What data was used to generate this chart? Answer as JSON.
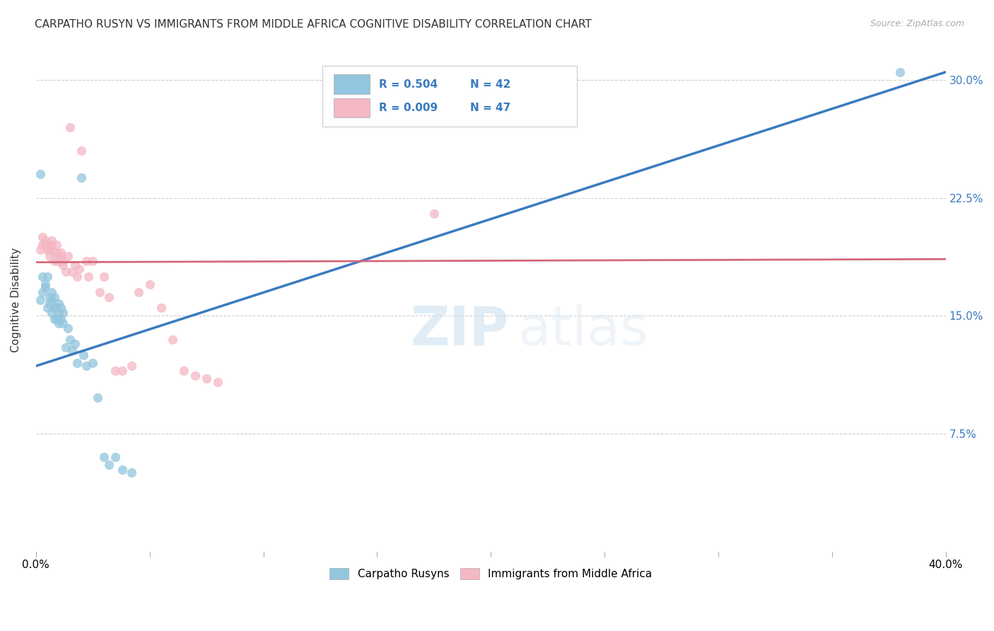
{
  "title": "CARPATHO RUSYN VS IMMIGRANTS FROM MIDDLE AFRICA COGNITIVE DISABILITY CORRELATION CHART",
  "source": "Source: ZipAtlas.com",
  "ylabel": "Cognitive Disability",
  "ytick_labels": [
    "7.5%",
    "15.0%",
    "22.5%",
    "30.0%"
  ],
  "ytick_values": [
    0.075,
    0.15,
    0.225,
    0.3
  ],
  "xlim": [
    0.0,
    0.4
  ],
  "ylim": [
    0.0,
    0.32
  ],
  "legend_label_1": "Carpatho Rusyns",
  "legend_label_2": "Immigrants from Middle Africa",
  "r1": 0.504,
  "n1": 42,
  "r2": 0.009,
  "n2": 47,
  "blue_color": "#92c5de",
  "pink_color": "#f4b8c4",
  "blue_line_color": "#3a7abf",
  "pink_line_color": "#d4687a",
  "watermark_zip": "ZIP",
  "watermark_atlas": "atlas",
  "blue_scatter_x": [
    0.002,
    0.003,
    0.003,
    0.004,
    0.004,
    0.005,
    0.005,
    0.006,
    0.006,
    0.007,
    0.007,
    0.007,
    0.008,
    0.008,
    0.008,
    0.009,
    0.009,
    0.01,
    0.01,
    0.01,
    0.011,
    0.011,
    0.012,
    0.012,
    0.013,
    0.014,
    0.015,
    0.016,
    0.017,
    0.018,
    0.02,
    0.021,
    0.022,
    0.025,
    0.027,
    0.03,
    0.032,
    0.035,
    0.038,
    0.042,
    0.002,
    0.38
  ],
  "blue_scatter_y": [
    0.16,
    0.165,
    0.175,
    0.168,
    0.17,
    0.175,
    0.155,
    0.162,
    0.158,
    0.16,
    0.152,
    0.165,
    0.148,
    0.155,
    0.162,
    0.148,
    0.155,
    0.145,
    0.15,
    0.158,
    0.148,
    0.155,
    0.145,
    0.152,
    0.13,
    0.142,
    0.135,
    0.128,
    0.132,
    0.12,
    0.238,
    0.125,
    0.118,
    0.12,
    0.098,
    0.06,
    0.055,
    0.06,
    0.052,
    0.05,
    0.24,
    0.305
  ],
  "pink_scatter_x": [
    0.002,
    0.003,
    0.003,
    0.004,
    0.004,
    0.005,
    0.005,
    0.006,
    0.006,
    0.007,
    0.007,
    0.008,
    0.008,
    0.009,
    0.009,
    0.01,
    0.01,
    0.011,
    0.011,
    0.012,
    0.012,
    0.013,
    0.014,
    0.015,
    0.016,
    0.017,
    0.018,
    0.019,
    0.02,
    0.022,
    0.023,
    0.025,
    0.028,
    0.03,
    0.032,
    0.035,
    0.038,
    0.042,
    0.045,
    0.05,
    0.055,
    0.06,
    0.065,
    0.07,
    0.075,
    0.08,
    0.175
  ],
  "pink_scatter_y": [
    0.192,
    0.195,
    0.2,
    0.195,
    0.198,
    0.195,
    0.192,
    0.188,
    0.192,
    0.195,
    0.198,
    0.185,
    0.19,
    0.19,
    0.195,
    0.188,
    0.185,
    0.188,
    0.19,
    0.182,
    0.185,
    0.178,
    0.188,
    0.27,
    0.178,
    0.182,
    0.175,
    0.18,
    0.255,
    0.185,
    0.175,
    0.185,
    0.165,
    0.175,
    0.162,
    0.115,
    0.115,
    0.118,
    0.165,
    0.17,
    0.155,
    0.135,
    0.115,
    0.112,
    0.11,
    0.108,
    0.215
  ],
  "blue_line_x": [
    0.0,
    0.4
  ],
  "blue_line_y": [
    0.118,
    0.305
  ],
  "pink_line_x": [
    0.0,
    0.4
  ],
  "pink_line_y": [
    0.184,
    0.186
  ]
}
